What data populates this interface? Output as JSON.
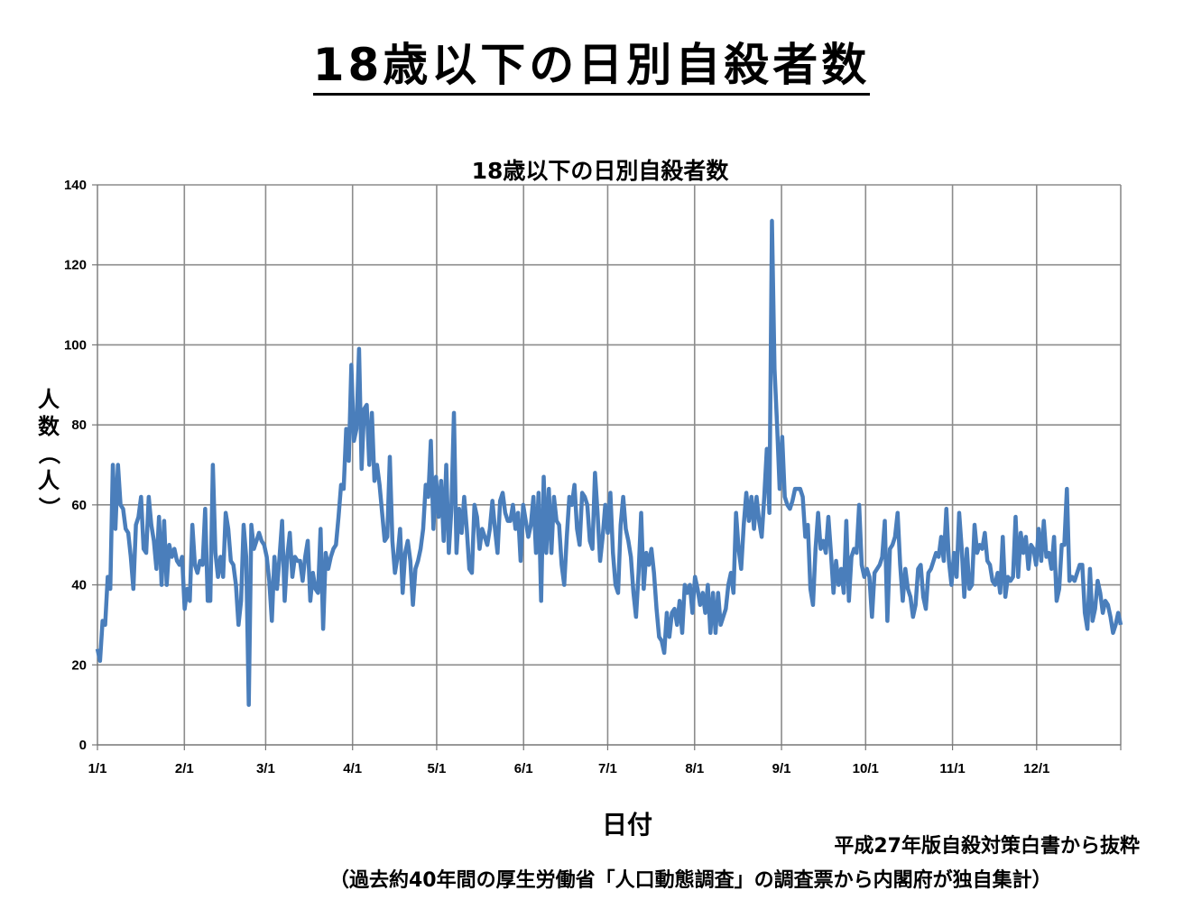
{
  "page": {
    "title": "18歳以下の日別自殺者数",
    "source_line1": "平成27年版自殺対策白書から抜粋",
    "source_line2": "（過去約40年間の厚生労働省「人口動態調査」の調査票から内閣府が独自集計）"
  },
  "chart_data": {
    "type": "line",
    "title": "18歳以下の日別自殺者数",
    "xlabel": "日付",
    "ylabel": "人数（人）",
    "ylim": [
      0,
      140
    ],
    "yticks": [
      0,
      20,
      40,
      60,
      80,
      100,
      120,
      140
    ],
    "xlim": [
      1,
      366
    ],
    "xtick_labels": [
      "1/1",
      "2/1",
      "3/1",
      "4/1",
      "5/1",
      "6/1",
      "7/1",
      "8/1",
      "9/1",
      "10/1",
      "11/1",
      "12/1"
    ],
    "xtick_days": [
      1,
      32,
      61,
      92,
      122,
      153,
      183,
      214,
      245,
      275,
      306,
      336
    ],
    "grid": true,
    "line_color": "#4a7ebb",
    "series": [
      {
        "x_start_day": 1,
        "values": [
          24,
          21,
          31,
          30,
          42,
          39,
          70,
          54,
          70,
          60,
          59,
          54,
          53,
          47,
          39,
          55,
          57,
          62,
          49,
          48,
          62,
          55,
          51,
          44,
          57,
          40,
          56,
          40,
          50,
          47,
          49,
          46,
          45,
          47,
          34,
          39,
          36,
          55,
          45,
          43,
          46,
          45,
          59,
          36,
          36,
          70,
          48,
          42,
          47,
          42,
          58,
          54,
          46,
          45,
          40,
          30,
          36,
          55,
          47,
          10,
          55,
          49,
          51,
          53,
          51,
          50,
          47,
          41,
          31,
          47,
          39,
          47,
          56,
          36,
          47,
          53,
          42,
          47,
          46,
          46,
          41,
          47,
          51,
          36,
          43,
          39,
          38,
          54,
          29,
          48,
          44,
          47,
          49,
          50,
          57,
          65,
          64,
          79,
          71,
          95,
          76,
          79,
          99,
          69,
          84,
          85,
          70,
          83,
          66,
          70,
          65,
          58,
          51,
          52,
          72,
          51,
          43,
          47,
          54,
          38,
          48,
          51,
          46,
          35,
          44,
          46,
          49,
          54,
          65,
          62,
          76,
          54,
          67,
          57,
          66,
          51,
          70,
          48,
          59,
          83,
          48,
          59,
          53,
          62,
          54,
          44,
          43,
          60,
          57,
          49,
          54,
          52,
          50,
          54,
          61,
          54,
          48,
          61,
          63,
          58,
          56,
          56,
          60,
          54,
          58,
          46,
          60,
          56,
          52,
          55,
          62,
          48,
          63,
          36,
          67,
          48,
          64,
          48,
          62,
          56,
          55,
          45,
          40,
          52,
          62,
          60,
          65,
          54,
          50,
          63,
          62,
          60,
          51,
          49,
          68,
          58,
          46,
          52,
          60,
          53,
          63,
          48,
          40,
          38,
          55,
          62,
          54,
          51,
          47,
          38,
          32,
          43,
          58,
          39,
          48,
          45,
          49,
          43,
          34,
          27,
          26,
          23,
          33,
          27,
          33,
          34,
          30,
          36,
          28,
          40,
          38,
          40,
          33,
          42,
          39,
          35,
          38,
          33,
          40,
          28,
          38,
          28,
          38,
          30,
          32,
          34,
          40,
          43,
          38,
          58,
          49,
          44,
          55,
          63,
          56,
          62,
          54,
          62,
          56,
          52,
          62,
          74,
          58,
          131,
          94,
          80,
          64,
          77,
          62,
          60,
          59,
          61,
          64,
          64,
          64,
          62,
          52,
          55,
          39,
          35,
          49,
          58,
          49,
          51,
          48,
          57,
          48,
          38,
          46,
          40,
          44,
          38,
          56,
          36,
          47,
          49,
          48,
          60,
          45,
          42,
          44,
          42,
          32,
          43,
          44,
          45,
          47,
          56,
          31,
          49,
          50,
          52,
          58,
          45,
          36,
          44,
          39,
          37,
          32,
          35,
          44,
          45,
          37,
          34,
          43,
          44,
          46,
          48,
          47,
          52,
          46,
          59,
          46,
          40,
          48,
          42,
          58,
          49,
          37,
          49,
          39,
          40,
          55,
          48,
          50,
          49,
          53,
          46,
          45,
          41,
          40,
          43,
          38,
          52,
          37,
          42,
          41,
          42,
          57,
          42,
          53,
          48,
          52,
          44,
          50,
          49,
          45,
          54,
          46,
          56,
          47,
          48,
          44,
          52,
          36,
          39,
          50,
          50,
          64,
          41,
          42,
          41,
          43,
          45,
          45,
          33,
          29,
          44,
          31,
          34,
          41,
          38,
          33,
          36,
          35,
          32,
          28,
          30,
          33,
          30
        ]
      }
    ]
  }
}
